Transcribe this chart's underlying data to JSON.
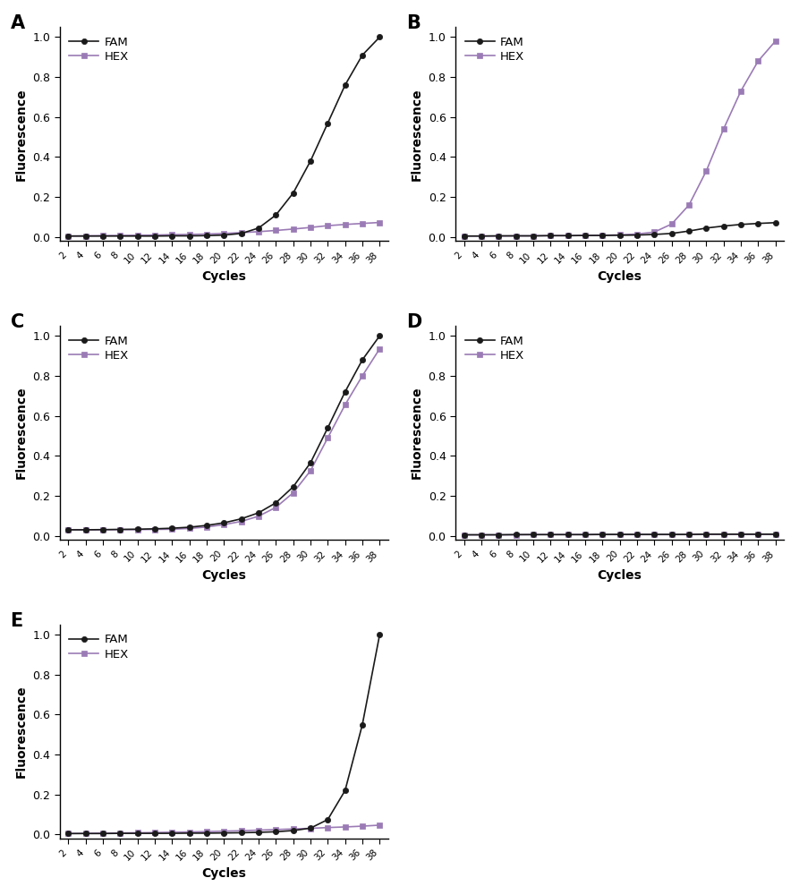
{
  "cycles": [
    2,
    4,
    6,
    8,
    10,
    12,
    14,
    16,
    18,
    20,
    22,
    24,
    26,
    28,
    30,
    32,
    34,
    36,
    38
  ],
  "panels": [
    "A",
    "B",
    "C",
    "D",
    "E"
  ],
  "fam_color": "#1a1a1a",
  "hex_color": "#9b7bb5",
  "fam_marker": "o",
  "hex_marker": "s",
  "ylabel": "Fluorescence",
  "xlabel": "Cycles",
  "ylim": [
    -0.02,
    1.05
  ],
  "yticks": [
    0.0,
    0.2,
    0.4,
    0.6,
    0.8,
    1.0
  ],
  "A_fam": [
    0.005,
    0.005,
    0.005,
    0.005,
    0.005,
    0.005,
    0.006,
    0.006,
    0.007,
    0.01,
    0.018,
    0.045,
    0.11,
    0.22,
    0.38,
    0.57,
    0.76,
    0.91,
    1.0
  ],
  "A_hex": [
    0.005,
    0.006,
    0.007,
    0.008,
    0.009,
    0.01,
    0.012,
    0.013,
    0.015,
    0.018,
    0.022,
    0.027,
    0.033,
    0.04,
    0.048,
    0.057,
    0.063,
    0.068,
    0.073
  ],
  "B_fam": [
    0.005,
    0.005,
    0.006,
    0.006,
    0.006,
    0.007,
    0.007,
    0.008,
    0.008,
    0.009,
    0.01,
    0.013,
    0.018,
    0.03,
    0.045,
    0.055,
    0.063,
    0.068,
    0.072
  ],
  "B_hex": [
    0.005,
    0.005,
    0.005,
    0.006,
    0.006,
    0.007,
    0.007,
    0.008,
    0.009,
    0.011,
    0.015,
    0.025,
    0.065,
    0.16,
    0.33,
    0.54,
    0.73,
    0.88,
    0.98
  ],
  "C_fam": [
    0.03,
    0.03,
    0.031,
    0.032,
    0.033,
    0.035,
    0.038,
    0.043,
    0.052,
    0.065,
    0.085,
    0.115,
    0.165,
    0.245,
    0.365,
    0.54,
    0.72,
    0.88,
    1.0
  ],
  "C_hex": [
    0.03,
    0.03,
    0.03,
    0.031,
    0.031,
    0.032,
    0.033,
    0.037,
    0.044,
    0.056,
    0.072,
    0.098,
    0.142,
    0.215,
    0.325,
    0.49,
    0.655,
    0.8,
    0.935
  ],
  "D_fam": [
    0.005,
    0.005,
    0.005,
    0.006,
    0.006,
    0.006,
    0.006,
    0.006,
    0.007,
    0.007,
    0.007,
    0.007,
    0.007,
    0.007,
    0.008,
    0.008,
    0.008,
    0.008,
    0.008
  ],
  "D_hex": [
    0.005,
    0.005,
    0.005,
    0.005,
    0.006,
    0.006,
    0.006,
    0.006,
    0.006,
    0.006,
    0.006,
    0.006,
    0.006,
    0.006,
    0.007,
    0.007,
    0.007,
    0.007,
    0.007
  ],
  "E_fam": [
    0.005,
    0.005,
    0.005,
    0.006,
    0.006,
    0.006,
    0.006,
    0.007,
    0.007,
    0.008,
    0.009,
    0.011,
    0.014,
    0.02,
    0.032,
    0.075,
    0.22,
    0.55,
    1.0
  ],
  "E_hex": [
    0.005,
    0.006,
    0.007,
    0.008,
    0.009,
    0.01,
    0.012,
    0.013,
    0.015,
    0.017,
    0.019,
    0.022,
    0.025,
    0.028,
    0.031,
    0.035,
    0.038,
    0.042,
    0.047
  ]
}
